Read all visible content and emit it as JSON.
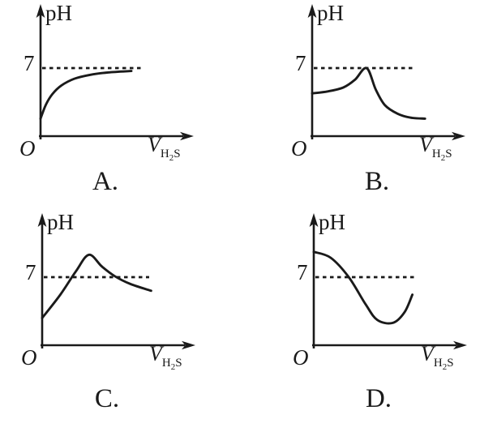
{
  "figure": {
    "background": "#ffffff",
    "ink_color": "#1a1a1a",
    "description": "Four candidate graphs (options A-D) of solution pH versus volume of H2S gas added, each with a dashed reference line at pH 7"
  },
  "panels": [
    {
      "option": "A.",
      "ylabel": "pH",
      "ref_label": "7",
      "origin": "O",
      "xlabel": {
        "v": "V",
        "h": "H",
        "two": "2",
        "s": "S"
      }
    },
    {
      "option": "B.",
      "ylabel": "pH",
      "ref_label": "7",
      "origin": "O",
      "xlabel": {
        "v": "V",
        "h": "H",
        "two": "2",
        "s": "S"
      }
    },
    {
      "option": "C.",
      "ylabel": "pH",
      "ref_label": "7",
      "origin": "O",
      "xlabel": {
        "v": "V",
        "h": "H",
        "two": "2",
        "s": "S"
      }
    },
    {
      "option": "D.",
      "ylabel": "pH",
      "ref_label": "7",
      "origin": "O",
      "xlabel": {
        "v": "V",
        "h": "H",
        "two": "2",
        "s": "S"
      }
    }
  ],
  "chart_data": [
    {
      "type": "line",
      "option": "A",
      "ylabel": "pH",
      "xlabel": "V(H2S)",
      "reference_line": {
        "pH": 7,
        "style": "dashed"
      },
      "x_axis": {
        "origin_label": "O",
        "ticks": "none",
        "arbitrary_range": [
          0,
          10
        ]
      },
      "y_axis": {
        "labeled_ticks": [
          7
        ]
      },
      "grid": false,
      "legend": "none",
      "trend": "starts strongly acidic near pH 2, rises steeply then levels off approaching pH 7 from below",
      "points": [
        [
          0,
          1.8
        ],
        [
          0.4,
          3.2
        ],
        [
          0.9,
          4.3
        ],
        [
          1.6,
          5.2
        ],
        [
          2.6,
          5.9
        ],
        [
          3.8,
          6.3
        ],
        [
          5.2,
          6.55
        ],
        [
          7.0,
          6.7
        ]
      ]
    },
    {
      "type": "line",
      "option": "B",
      "ylabel": "pH",
      "xlabel": "V(H2S)",
      "reference_line": {
        "pH": 7,
        "style": "dashed"
      },
      "x_axis": {
        "origin_label": "O",
        "ticks": "none",
        "arbitrary_range": [
          0,
          10
        ]
      },
      "y_axis": {
        "labeled_ticks": [
          7
        ]
      },
      "grid": false,
      "legend": "none",
      "trend": "starts near pH 4.5, rises to a sharp peak just touching pH 7, then falls steeply and flattens near pH 2",
      "points": [
        [
          0,
          4.4
        ],
        [
          1.2,
          4.6
        ],
        [
          2.4,
          5.0
        ],
        [
          3.3,
          5.8
        ],
        [
          4.2,
          7.0
        ],
        [
          4.9,
          4.8
        ],
        [
          5.6,
          3.2
        ],
        [
          6.6,
          2.3
        ],
        [
          7.6,
          1.9
        ],
        [
          8.7,
          1.8
        ]
      ]
    },
    {
      "type": "line",
      "option": "C",
      "ylabel": "pH",
      "xlabel": "V(H2S)",
      "reference_line": {
        "pH": 7,
        "style": "dashed"
      },
      "x_axis": {
        "origin_label": "O",
        "ticks": "none",
        "arbitrary_range": [
          0,
          10
        ]
      },
      "y_axis": {
        "labeled_ticks": [
          7
        ]
      },
      "grid": false,
      "legend": "none",
      "trend": "starts near pH 3, rises above 7 to a peak near pH 9, then declines back through 7 and drifts slightly below it",
      "points": [
        [
          0,
          2.8
        ],
        [
          1.4,
          5.2
        ],
        [
          2.6,
          7.6
        ],
        [
          3.6,
          9.3
        ],
        [
          4.6,
          8.1
        ],
        [
          5.6,
          7.1
        ],
        [
          6.8,
          6.3
        ],
        [
          8.4,
          5.6
        ]
      ]
    },
    {
      "type": "line",
      "option": "D",
      "ylabel": "pH",
      "xlabel": "V(H2S)",
      "reference_line": {
        "pH": 7,
        "style": "dashed"
      },
      "x_axis": {
        "origin_label": "O",
        "ticks": "none",
        "arbitrary_range": [
          0,
          10
        ]
      },
      "y_axis": {
        "labeled_ticks": [
          7
        ]
      },
      "grid": false,
      "legend": "none",
      "trend": "starts basic near pH 9.5, falls through 7 to a minimum near pH 2.5, then rises again toward pH 5",
      "points": [
        [
          0,
          9.6
        ],
        [
          1.3,
          9.0
        ],
        [
          2.7,
          7.0
        ],
        [
          4.0,
          4.2
        ],
        [
          4.9,
          2.6
        ],
        [
          6.1,
          2.3
        ],
        [
          7.0,
          3.4
        ],
        [
          7.6,
          5.2
        ]
      ]
    }
  ]
}
